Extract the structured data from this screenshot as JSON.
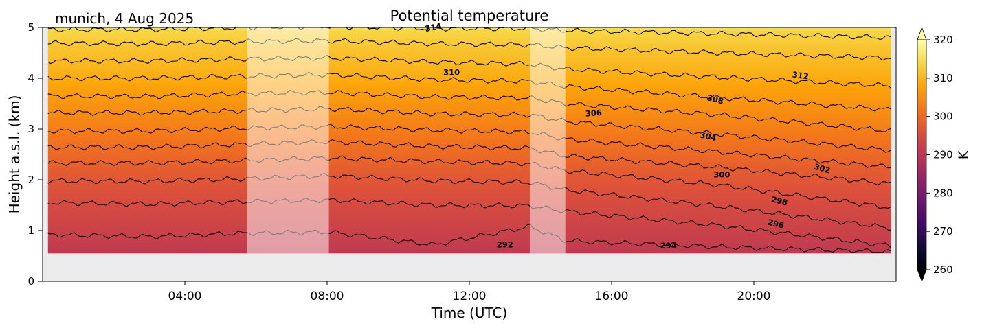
{
  "chart_data": {
    "type": "heatmap",
    "title": "Potential temperature",
    "location_date": "munich, 4 Aug 2025",
    "xlabel": "Time (UTC)",
    "ylabel": "Height a.s.l. (km)",
    "colorbar_label": "K",
    "xlim_hours": [
      0,
      24
    ],
    "ylim_km": [
      0,
      5
    ],
    "x_ticks": [
      {
        "hour": 4,
        "label": "04:00"
      },
      {
        "hour": 8,
        "label": "08:00"
      },
      {
        "hour": 12,
        "label": "12:00"
      },
      {
        "hour": 16,
        "label": "16:00"
      },
      {
        "hour": 20,
        "label": "20:00"
      }
    ],
    "y_ticks": [
      {
        "value": 0,
        "label": "0"
      },
      {
        "value": 1,
        "label": "1"
      },
      {
        "value": 2,
        "label": "2"
      },
      {
        "value": 3,
        "label": "3"
      },
      {
        "value": 4,
        "label": "4"
      },
      {
        "value": 5,
        "label": "5"
      }
    ],
    "colorbar_ticks": [
      {
        "value": 260,
        "label": "260"
      },
      {
        "value": 270,
        "label": "270"
      },
      {
        "value": 280,
        "label": "280"
      },
      {
        "value": 290,
        "label": "290"
      },
      {
        "value": 300,
        "label": "300"
      },
      {
        "value": 310,
        "label": "310"
      },
      {
        "value": 320,
        "label": "320"
      }
    ],
    "colorbar_range": [
      260,
      320
    ],
    "colormap": "inferno",
    "data_start_hour": 0.15,
    "data_end_hour": 23.85,
    "data_bottom_km": 0.55,
    "masked_periods_hours": [
      [
        5.75,
        8.05
      ],
      [
        13.7,
        14.7
      ]
    ],
    "contour_interval_K": 2,
    "contour_levels": [
      {
        "theta": 292,
        "z": [
          0.92,
          0.88,
          0.95,
          0.97,
          0.72,
          1.08,
          0.8,
          0.68,
          0.58
        ]
      },
      {
        "theta": 294,
        "z": [
          1.55,
          1.52,
          1.57,
          1.6,
          1.5,
          1.49,
          1.38,
          1.1,
          0.7
        ]
      },
      {
        "theta": 296,
        "z": [
          1.98,
          1.97,
          2.02,
          2.08,
          1.98,
          1.95,
          1.8,
          1.48,
          1.05
        ]
      },
      {
        "theta": 298,
        "z": [
          2.33,
          2.33,
          2.38,
          2.43,
          2.36,
          2.32,
          2.18,
          1.9,
          1.45
        ]
      },
      {
        "theta": 300,
        "z": [
          2.64,
          2.64,
          2.7,
          2.75,
          2.66,
          2.62,
          2.47,
          2.25,
          1.92
        ]
      },
      {
        "theta": 302,
        "z": [
          2.96,
          2.96,
          3.02,
          3.05,
          2.98,
          2.94,
          2.8,
          2.55,
          2.25
        ]
      },
      {
        "theta": 304,
        "z": [
          3.32,
          3.32,
          3.36,
          3.4,
          3.3,
          3.28,
          3.15,
          2.9,
          2.58
        ]
      },
      {
        "theta": 306,
        "z": [
          3.65,
          3.64,
          3.7,
          3.72,
          3.63,
          3.61,
          3.5,
          3.28,
          2.96
        ]
      },
      {
        "theta": 308,
        "z": [
          4.0,
          4.0,
          4.04,
          4.07,
          3.97,
          3.94,
          3.84,
          3.62,
          3.38
        ]
      },
      {
        "theta": 310,
        "z": [
          4.34,
          4.34,
          4.38,
          4.4,
          4.32,
          4.28,
          4.18,
          4.02,
          3.85
        ]
      },
      {
        "theta": 312,
        "z": [
          4.69,
          4.68,
          4.72,
          4.74,
          4.68,
          4.66,
          4.6,
          4.5,
          4.4
        ]
      },
      {
        "theta": 314,
        "z": [
          4.96,
          4.96,
          5.0,
          5.02,
          4.98,
          4.98,
          4.94,
          4.88,
          4.8
        ]
      }
    ],
    "contour_x_hours": [
      0.15,
      3,
      5.75,
      8.05,
      11,
      13.7,
      14.7,
      19,
      23.85
    ],
    "contour_labels": [
      {
        "text": "314",
        "hour": 11.0,
        "z": 4.95,
        "angle": -12
      },
      {
        "text": "310",
        "hour": 11.5,
        "z": 4.06,
        "angle": 0
      },
      {
        "text": "292",
        "hour": 13.0,
        "z": 0.67,
        "angle": 0
      },
      {
        "text": "306",
        "hour": 15.5,
        "z": 3.26,
        "angle": -4
      },
      {
        "text": "312",
        "hour": 21.3,
        "z": 4.0,
        "angle": 8
      },
      {
        "text": "308",
        "hour": 18.9,
        "z": 3.53,
        "angle": 14
      },
      {
        "text": "304",
        "hour": 18.7,
        "z": 2.8,
        "angle": 12
      },
      {
        "text": "300",
        "hour": 19.1,
        "z": 2.05,
        "angle": 0
      },
      {
        "text": "302",
        "hour": 21.9,
        "z": 2.17,
        "angle": 16
      },
      {
        "text": "298",
        "hour": 20.7,
        "z": 1.53,
        "angle": 14
      },
      {
        "text": "296",
        "hour": 20.6,
        "z": 1.08,
        "angle": 14
      },
      {
        "text": "294",
        "hour": 17.6,
        "z": 0.65,
        "angle": 0
      }
    ],
    "colors": {
      "missing_data": "#ebebeb",
      "contour_line": "#000000",
      "mask_overlay": "#ffffff"
    }
  }
}
